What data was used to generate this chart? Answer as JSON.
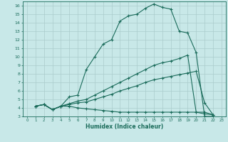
{
  "xlabel": "Humidex (Indice chaleur)",
  "bg_color": "#c8e8e8",
  "grid_color": "#aacccc",
  "line_color": "#1a6b5a",
  "xlim": [
    -0.5,
    23.5
  ],
  "ylim": [
    3,
    16.5
  ],
  "xticks": [
    0,
    1,
    2,
    3,
    4,
    5,
    6,
    7,
    8,
    9,
    10,
    11,
    12,
    13,
    14,
    15,
    16,
    17,
    18,
    19,
    20,
    21,
    22,
    23
  ],
  "yticks": [
    3,
    4,
    5,
    6,
    7,
    8,
    9,
    10,
    11,
    12,
    13,
    14,
    15,
    16
  ],
  "line1_x": [
    1,
    2,
    3,
    4,
    5,
    6,
    7,
    8,
    9,
    10,
    11,
    12,
    13,
    14,
    15,
    16,
    17,
    18,
    19,
    20,
    21,
    22
  ],
  "line1_y": [
    4.2,
    4.4,
    3.8,
    4.2,
    5.3,
    5.5,
    8.5,
    10.0,
    11.5,
    12.0,
    14.2,
    14.8,
    15.0,
    15.7,
    16.2,
    15.8,
    15.6,
    13.0,
    12.8,
    10.5,
    3.0,
    3.0
  ],
  "line2_x": [
    1,
    2,
    3,
    4,
    5,
    6,
    7,
    8,
    9,
    10,
    11,
    12,
    13,
    14,
    15,
    16,
    17,
    18,
    19,
    20,
    21,
    22
  ],
  "line2_y": [
    4.2,
    4.4,
    3.8,
    4.2,
    4.5,
    4.8,
    5.0,
    5.5,
    6.0,
    6.5,
    7.0,
    7.5,
    8.0,
    8.5,
    9.0,
    9.3,
    9.5,
    9.8,
    10.2,
    3.5,
    3.5,
    3.2
  ],
  "line3_x": [
    1,
    2,
    3,
    4,
    5,
    6,
    7,
    8,
    9,
    10,
    11,
    12,
    13,
    14,
    15,
    16,
    17,
    18,
    19,
    20,
    21,
    22
  ],
  "line3_y": [
    4.2,
    4.4,
    3.8,
    4.2,
    4.4,
    4.6,
    4.7,
    5.0,
    5.3,
    5.6,
    6.0,
    6.3,
    6.6,
    7.0,
    7.3,
    7.5,
    7.7,
    7.9,
    8.1,
    8.3,
    4.6,
    3.2
  ],
  "line4_x": [
    1,
    2,
    3,
    4,
    5,
    6,
    7,
    8,
    9,
    10,
    11,
    12,
    13,
    14,
    15,
    16,
    17,
    18,
    19,
    20,
    21,
    22
  ],
  "line4_y": [
    4.2,
    4.4,
    3.8,
    4.2,
    4.2,
    4.0,
    3.9,
    3.8,
    3.7,
    3.6,
    3.5,
    3.5,
    3.5,
    3.5,
    3.5,
    3.5,
    3.5,
    3.5,
    3.5,
    3.5,
    3.3,
    3.2
  ]
}
